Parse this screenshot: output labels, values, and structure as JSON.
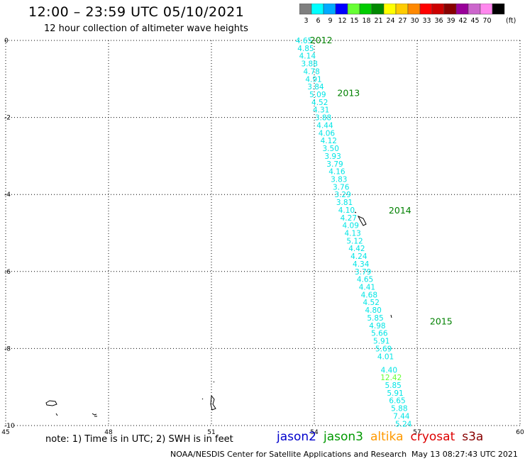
{
  "header": {
    "title": "12:00 – 23:59 UTC 05/10/2021",
    "subtitle": "12 hour collection of altimeter wave heights"
  },
  "colorbar": {
    "unit": "(ft)",
    "bins": [
      {
        "label": "3",
        "color": "#7f7f7f"
      },
      {
        "label": "6",
        "color": "#00ffff"
      },
      {
        "label": "9",
        "color": "#00aaff"
      },
      {
        "label": "12",
        "color": "#0000ff"
      },
      {
        "label": "15",
        "color": "#66ff33"
      },
      {
        "label": "18",
        "color": "#00cc00"
      },
      {
        "label": "21",
        "color": "#008800"
      },
      {
        "label": "24",
        "color": "#ffff00"
      },
      {
        "label": "27",
        "color": "#ffcc00"
      },
      {
        "label": "30",
        "color": "#ff8800"
      },
      {
        "label": "33",
        "color": "#ff0000"
      },
      {
        "label": "36",
        "color": "#cc0000"
      },
      {
        "label": "39",
        "color": "#880000"
      },
      {
        "label": "42",
        "color": "#990099"
      },
      {
        "label": "45",
        "color": "#cc66cc"
      },
      {
        "label": "70",
        "color": "#ff88ee"
      },
      {
        "label": "",
        "color": "#000000"
      }
    ]
  },
  "chart_data": {
    "type": "scatter",
    "xlim": [
      45,
      60
    ],
    "ylim": [
      -10,
      0
    ],
    "xticks": [
      "45",
      "48",
      "51",
      "54",
      "57",
      "60"
    ],
    "yticks": [
      "0",
      "-2",
      "-4",
      "-6",
      "-8",
      "-10"
    ],
    "grid": true,
    "track_color": "#00e5e5",
    "highlight_color": "#66ff33",
    "time_color": "#008000",
    "time_labels": [
      {
        "label": "2012",
        "x": 54.2,
        "y": 0.0
      },
      {
        "label": "2013",
        "x": 55.0,
        "y": -1.37
      },
      {
        "label": "2014",
        "x": 56.5,
        "y": -4.42
      },
      {
        "label": "2015",
        "x": 57.7,
        "y": -7.3
      }
    ],
    "points": [
      {
        "lon": 53.7,
        "lat": 0.0,
        "swh": "4.65"
      },
      {
        "lon": 53.75,
        "lat": -0.2,
        "swh": "4.85"
      },
      {
        "lon": 53.8,
        "lat": -0.4,
        "swh": "4.14"
      },
      {
        "lon": 53.86,
        "lat": -0.6,
        "swh": "3.88"
      },
      {
        "lon": 53.92,
        "lat": -0.8,
        "swh": "4.78"
      },
      {
        "lon": 53.98,
        "lat": -1.0,
        "swh": "4.91"
      },
      {
        "lon": 54.04,
        "lat": -1.2,
        "swh": "3.84"
      },
      {
        "lon": 54.1,
        "lat": -1.4,
        "swh": "5.09"
      },
      {
        "lon": 54.16,
        "lat": -1.6,
        "swh": "4.52"
      },
      {
        "lon": 54.2,
        "lat": -1.8,
        "swh": "4.31"
      },
      {
        "lon": 54.26,
        "lat": -2.0,
        "swh": "3.88"
      },
      {
        "lon": 54.31,
        "lat": -2.2,
        "swh": "4.44"
      },
      {
        "lon": 54.36,
        "lat": -2.4,
        "swh": "4.06"
      },
      {
        "lon": 54.42,
        "lat": -2.6,
        "swh": "4.12"
      },
      {
        "lon": 54.48,
        "lat": -2.8,
        "swh": "3.50"
      },
      {
        "lon": 54.54,
        "lat": -3.0,
        "swh": "3.93"
      },
      {
        "lon": 54.6,
        "lat": -3.2,
        "swh": "3.79"
      },
      {
        "lon": 54.66,
        "lat": -3.4,
        "swh": "4.16"
      },
      {
        "lon": 54.72,
        "lat": -3.6,
        "swh": "3.83"
      },
      {
        "lon": 54.78,
        "lat": -3.8,
        "swh": "3.76"
      },
      {
        "lon": 54.83,
        "lat": -4.0,
        "swh": "3.29"
      },
      {
        "lon": 54.88,
        "lat": -4.2,
        "swh": "3.81"
      },
      {
        "lon": 54.94,
        "lat": -4.4,
        "swh": "4.10"
      },
      {
        "lon": 55.0,
        "lat": -4.6,
        "swh": "4.27"
      },
      {
        "lon": 55.06,
        "lat": -4.8,
        "swh": "4.09"
      },
      {
        "lon": 55.12,
        "lat": -5.0,
        "swh": "4.13"
      },
      {
        "lon": 55.18,
        "lat": -5.2,
        "swh": "5.12"
      },
      {
        "lon": 55.24,
        "lat": -5.4,
        "swh": "4.42"
      },
      {
        "lon": 55.3,
        "lat": -5.6,
        "swh": "4.24"
      },
      {
        "lon": 55.36,
        "lat": -5.8,
        "swh": "4.34"
      },
      {
        "lon": 55.42,
        "lat": -6.0,
        "swh": "3.79"
      },
      {
        "lon": 55.48,
        "lat": -6.2,
        "swh": "4.65"
      },
      {
        "lon": 55.54,
        "lat": -6.4,
        "swh": "4.41"
      },
      {
        "lon": 55.6,
        "lat": -6.6,
        "swh": "4.68"
      },
      {
        "lon": 55.66,
        "lat": -6.8,
        "swh": "4.52"
      },
      {
        "lon": 55.72,
        "lat": -7.0,
        "swh": "4.80"
      },
      {
        "lon": 55.78,
        "lat": -7.2,
        "swh": "5.85"
      },
      {
        "lon": 55.84,
        "lat": -7.4,
        "swh": "4.98"
      },
      {
        "lon": 55.9,
        "lat": -7.6,
        "swh": "5.66"
      },
      {
        "lon": 55.96,
        "lat": -7.8,
        "swh": "5.91"
      },
      {
        "lon": 56.02,
        "lat": -8.0,
        "swh": "5.69"
      },
      {
        "lon": 56.08,
        "lat": -8.2,
        "swh": "4.01"
      },
      {
        "lon": 56.18,
        "lat": -8.55,
        "swh": "4.40"
      },
      {
        "lon": 56.24,
        "lat": -8.75,
        "swh": "12.42",
        "highlight": true
      },
      {
        "lon": 56.3,
        "lat": -8.95,
        "swh": "5.85"
      },
      {
        "lon": 56.36,
        "lat": -9.15,
        "swh": "5.91"
      },
      {
        "lon": 56.42,
        "lat": -9.35,
        "swh": "6.65"
      },
      {
        "lon": 56.48,
        "lat": -9.55,
        "swh": "5.88"
      },
      {
        "lon": 56.54,
        "lat": -9.75,
        "swh": "7.44"
      },
      {
        "lon": 56.6,
        "lat": -9.95,
        "swh": "5.24"
      }
    ]
  },
  "note": "note: 1) Time is in UTC; 2) SWH is in feet",
  "satellites": [
    {
      "name": "jason2",
      "color": "#0000cc"
    },
    {
      "name": "jason3",
      "color": "#009900"
    },
    {
      "name": "altika",
      "color": "#ff9900"
    },
    {
      "name": "cryosat",
      "color": "#dd0000"
    },
    {
      "name": "s3a",
      "color": "#880000"
    }
  ],
  "footer": {
    "agency": "NOAA/NESDIS Center for Satellite Applications and Research",
    "timestamp": "May 13 08:27:43 UTC 2021"
  }
}
